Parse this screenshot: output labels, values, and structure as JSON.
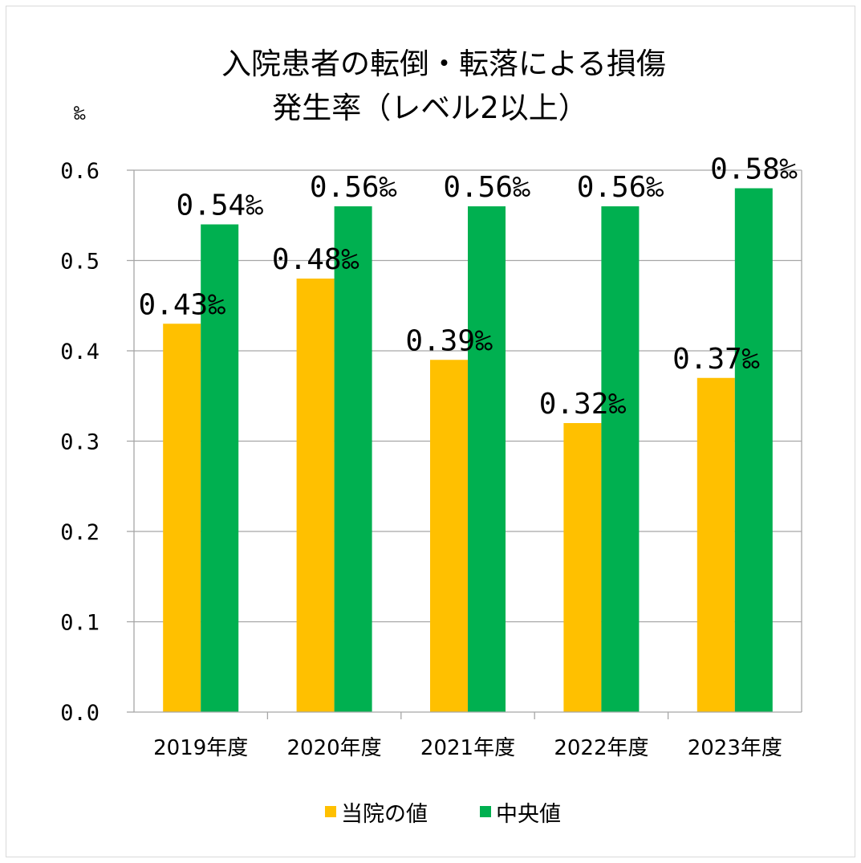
{
  "chart_data": {
    "type": "bar",
    "title_lines": [
      "入院患者の転倒・転落による損傷",
      "発生率（レベル2以上）"
    ],
    "ylabel": "‰",
    "categories": [
      "2019年度",
      "2020年度",
      "2021年度",
      "2022年度",
      "2023年度"
    ],
    "ylim": [
      0,
      0.6
    ],
    "yticks": [
      "0.0",
      "0.1",
      "0.2",
      "0.3",
      "0.4",
      "0.5",
      "0.6"
    ],
    "ytick_values": [
      0,
      0.1,
      0.2,
      0.3,
      0.4,
      0.5,
      0.6
    ],
    "grid": true,
    "legend_position": "bottom",
    "series": [
      {
        "name": "当院の値",
        "color": "#ffc000",
        "values": [
          0.43,
          0.48,
          0.39,
          0.32,
          0.37
        ],
        "labels": [
          "0.43‰",
          "0.48‰",
          "0.39‰",
          "0.32‰",
          "0.37‰"
        ]
      },
      {
        "name": "中央値",
        "color": "#00b050",
        "values": [
          0.54,
          0.56,
          0.56,
          0.56,
          0.58
        ],
        "labels": [
          "0.54‰",
          "0.56‰",
          "0.56‰",
          "0.56‰",
          "0.58‰"
        ]
      }
    ]
  }
}
